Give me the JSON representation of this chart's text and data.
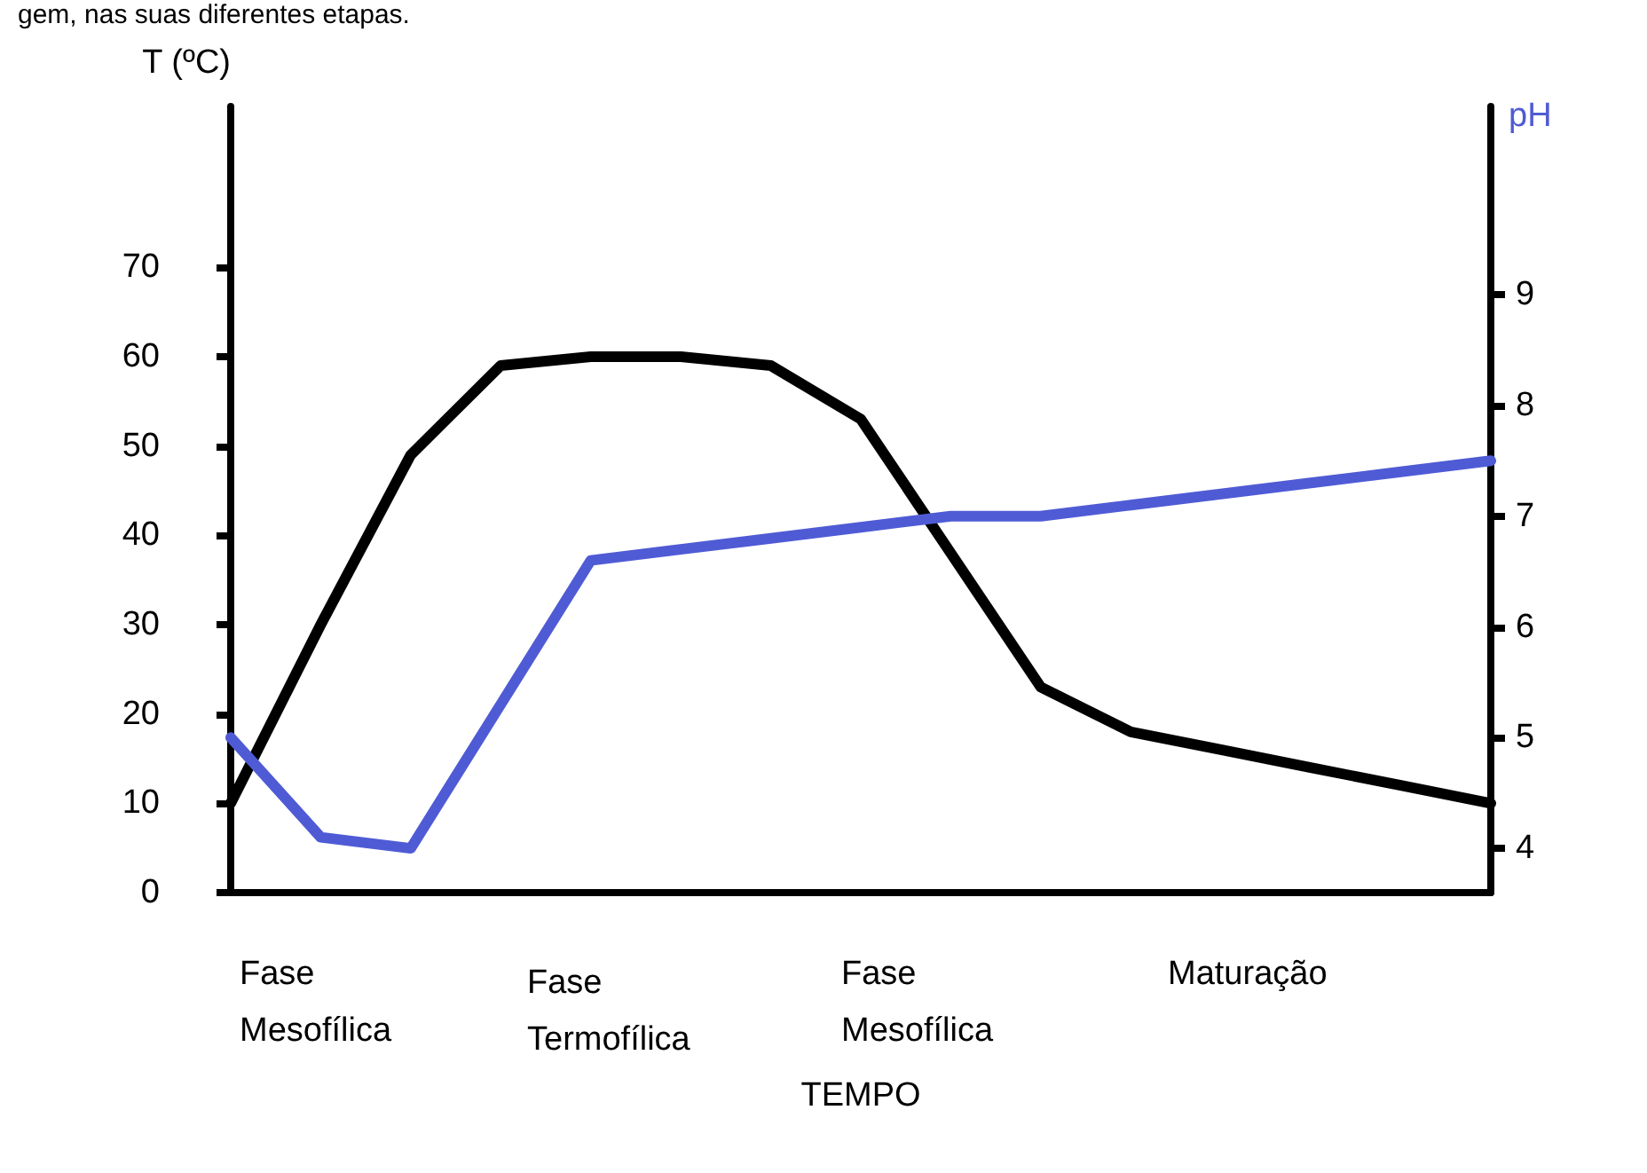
{
  "chart_data": {
    "type": "line",
    "ylabel": "T (ºC)",
    "y2label": "pH",
    "xlabel": "TEMPO",
    "annotations": [
      "gem, nas suas diferentes etapas.",
      "Fase\nMesofílica",
      "Fase\nTermofílica",
      "Fase\nMesofílica",
      "Maturação"
    ],
    "categories": [
      null,
      null,
      null,
      null,
      null,
      null,
      null,
      null,
      null,
      null,
      null,
      null,
      null,
      null,
      null
    ],
    "series": [
      {
        "color": "#000000",
        "values": [
          10,
          30,
          49,
          59,
          60,
          60,
          59,
          53,
          38,
          23,
          18,
          16,
          14,
          12,
          10
        ]
      },
      {
        "color": "#4f5bd5",
        "axis": "y2",
        "values": [
          5.0,
          4.1,
          4.0,
          5.3,
          6.6,
          6.7,
          6.8,
          6.9,
          7.0,
          7.0,
          7.1,
          7.2,
          7.3,
          7.4,
          7.5
        ]
      }
    ],
    "ylim": [
      0,
      88
    ],
    "yticks": [
      0,
      10,
      20,
      30,
      40,
      50,
      60,
      70
    ],
    "y2lim": [
      3.6,
      10.7
    ],
    "y2ticks": [
      4,
      5,
      6,
      7,
      8,
      9
    ],
    "tick_labels": "y",
    "grid": false,
    "marker": "none",
    "line_style": "solid"
  }
}
